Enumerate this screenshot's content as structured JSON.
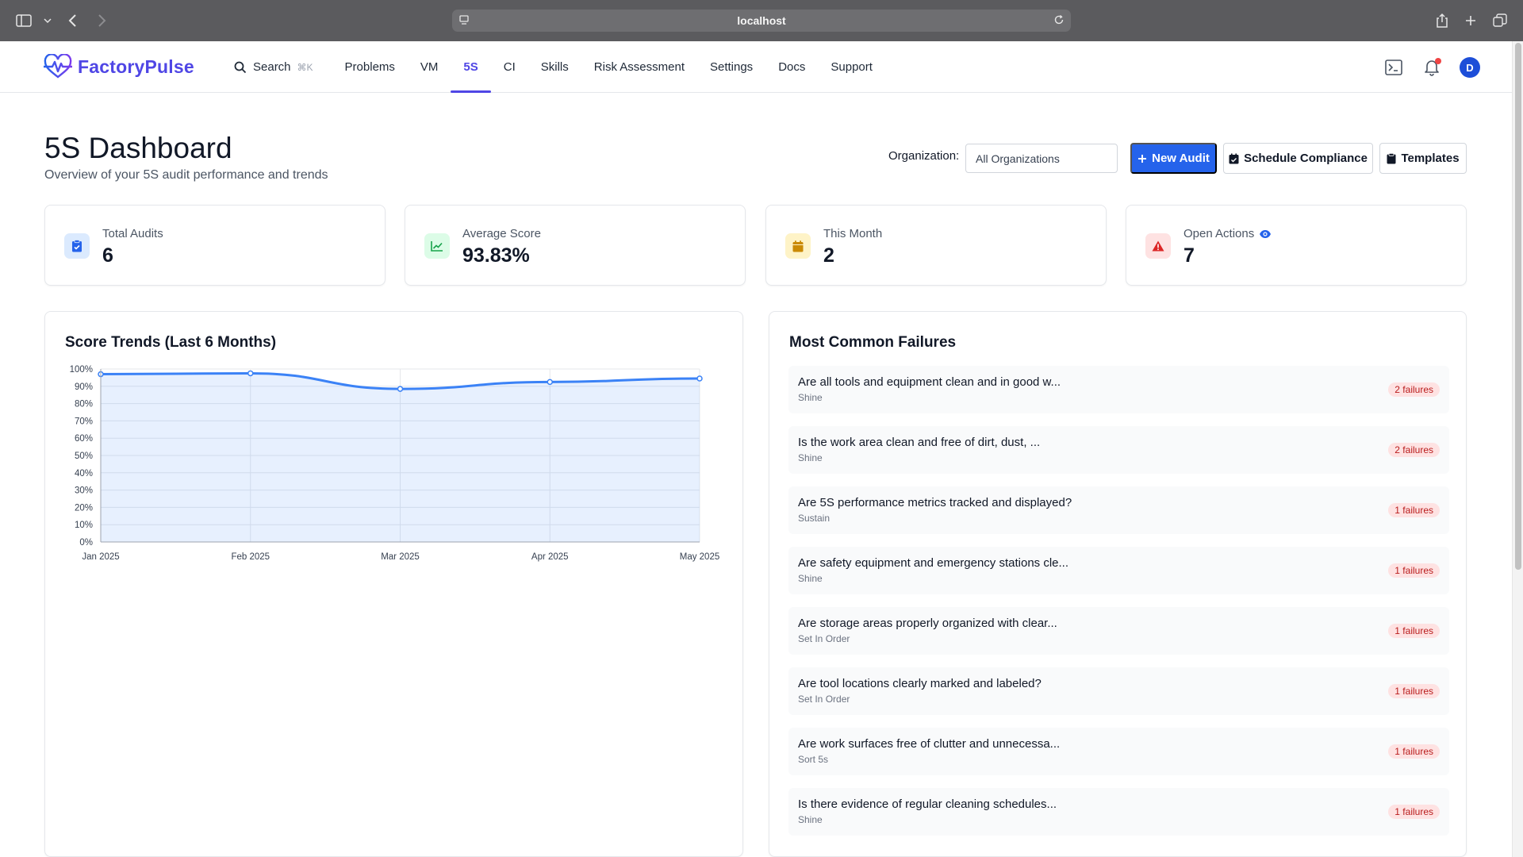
{
  "browser": {
    "url": "localhost",
    "icons": [
      "sidebar-icon",
      "chevron-down-icon",
      "back-icon",
      "forward-icon",
      "site-info-icon",
      "reload-icon",
      "share-icon",
      "new-tab-icon",
      "tabs-overview-icon"
    ]
  },
  "app": {
    "brand": "FactoryPulse",
    "brand_color": "#4f46e5",
    "nav": {
      "search_label": "Search",
      "search_shortcut": "⌘K",
      "items": [
        {
          "label": "Problems"
        },
        {
          "label": "VM"
        },
        {
          "label": "5S",
          "active": true
        },
        {
          "label": "CI"
        },
        {
          "label": "Skills"
        },
        {
          "label": "Risk Assessment"
        },
        {
          "label": "Settings"
        },
        {
          "label": "Docs"
        },
        {
          "label": "Support"
        }
      ]
    },
    "header_icons": [
      "terminal-icon",
      "bell-icon"
    ],
    "avatar_initial": "D"
  },
  "page": {
    "title": "5S Dashboard",
    "subtitle": "Overview of your 5S audit performance and trends",
    "org_label": "Organization:",
    "org_value": "All Organizations",
    "buttons": {
      "new_audit": "New Audit",
      "schedule": "Schedule Compliance",
      "templates": "Templates"
    }
  },
  "stats": [
    {
      "label": "Total Audits",
      "value": "6",
      "icon": "clipboard-check-icon",
      "color": "#2563eb",
      "bg": "#dbeafe"
    },
    {
      "label": "Average Score",
      "value": "93.83%",
      "icon": "trend-chart-icon",
      "color": "#16a34a",
      "bg": "#dcfce7"
    },
    {
      "label": "This Month",
      "value": "2",
      "icon": "calendar-icon",
      "color": "#ca8a04",
      "bg": "#fef3c7"
    },
    {
      "label": "Open Actions",
      "value": "7",
      "icon": "warning-icon",
      "color": "#dc2626",
      "bg": "#fee2e2",
      "extra_icon": "eye-icon"
    }
  ],
  "trend_panel": {
    "title": "Score Trends (Last 6 Months)"
  },
  "chart_data": {
    "type": "area",
    "title": "Score Trends (Last 6 Months)",
    "categories": [
      "Jan 2025",
      "Feb 2025",
      "Mar 2025",
      "Apr 2025",
      "May 2025"
    ],
    "series": [
      {
        "values": [
          97,
          97.5,
          88.5,
          92.5,
          94.5
        ],
        "color": "#3b82f6"
      }
    ],
    "ylim": [
      0,
      100
    ],
    "y_ticks": [
      "0%",
      "10%",
      "20%",
      "30%",
      "40%",
      "50%",
      "60%",
      "70%",
      "80%",
      "90%",
      "100%"
    ],
    "grid": true
  },
  "failures_panel": {
    "title": "Most Common Failures",
    "items": [
      {
        "question": "Are all tools and equipment clean and in good w...",
        "category": "Shine",
        "count": "2 failures"
      },
      {
        "question": "Is the work area clean and free of dirt, dust, ...",
        "category": "Shine",
        "count": "2 failures"
      },
      {
        "question": "Are 5S performance metrics tracked and displayed?",
        "category": "Sustain",
        "count": "1 failures"
      },
      {
        "question": "Are safety equipment and emergency stations cle...",
        "category": "Shine",
        "count": "1 failures"
      },
      {
        "question": "Are storage areas properly organized with clear...",
        "category": "Set In Order",
        "count": "1 failures"
      },
      {
        "question": "Are tool locations clearly marked and labeled?",
        "category": "Set In Order",
        "count": "1 failures"
      },
      {
        "question": "Are work surfaces free of clutter and unnecessa...",
        "category": "Sort 5s",
        "count": "1 failures"
      },
      {
        "question": "Is there evidence of regular cleaning schedules...",
        "category": "Shine",
        "count": "1 failures"
      }
    ]
  }
}
